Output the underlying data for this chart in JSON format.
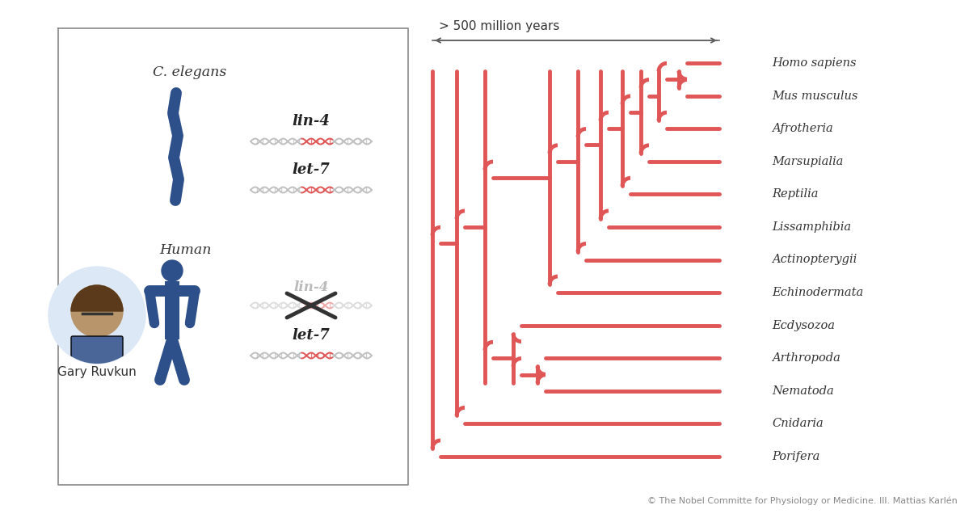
{
  "background_color": "#ffffff",
  "tree_color": "#e05555",
  "tree_lw": 3.5,
  "box_color": "#888888",
  "text_color_dark": "#333333",
  "blue_color": "#2d4f8a",
  "gray_color": "#aaaaaa",
  "red_color": "#e05555",
  "species": [
    "Homo sapiens",
    "Mus musculus",
    "Afrotheria",
    "Marsupialia",
    "Reptilia",
    "Lissamphibia",
    "Actinopterygii",
    "Echinodermata",
    "Ecdysozoa",
    "Arthropoda",
    "Nematoda",
    "Cnidaria",
    "Porifera"
  ],
  "copyright_text": "© The Nobel Committe for Physiology or Medicine. Ill. Mattias Karlén",
  "annotation_text": "> 500 million years",
  "gary_ruvkun_label": "Gary Ruvkun",
  "c_elegans_label": "C. elegans",
  "human_label": "Human",
  "lin4_label": "lin-4",
  "let7_label": "let-7"
}
